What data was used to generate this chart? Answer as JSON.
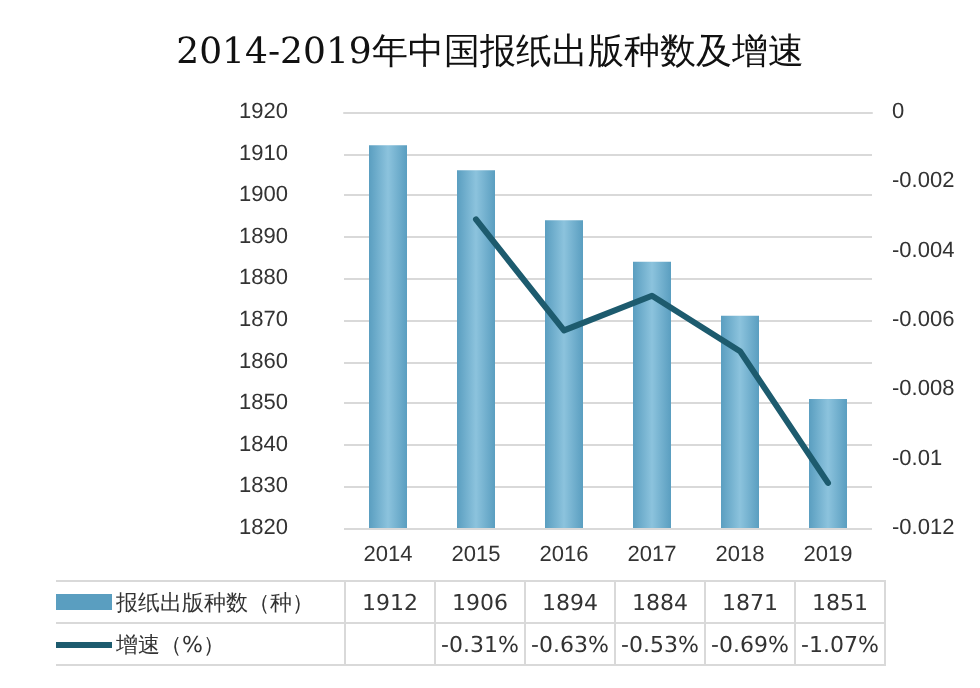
{
  "chart_data": {
    "type": "bar",
    "title": "2014-2019年中国报纸出版种数及增速",
    "categories": [
      "2014",
      "2015",
      "2016",
      "2017",
      "2018",
      "2019"
    ],
    "series": [
      {
        "name": "报纸出版种数（种）",
        "color": "#5a9ec0",
        "values": [
          1912,
          1906,
          1894,
          1884,
          1871,
          1851
        ]
      },
      {
        "name": "增速（%）",
        "type": "line",
        "axis": "y2",
        "color": "#1d5b6e",
        "values": [
          null,
          -0.0031,
          -0.0063,
          -0.0053,
          -0.0069,
          -0.0107
        ],
        "value_labels": [
          null,
          "-0.31%",
          "-0.63%",
          "-0.53%",
          "-0.69%",
          "-1.07%"
        ]
      }
    ],
    "ylim": [
      1820,
      1920
    ],
    "yticks": [
      1820,
      1830,
      1840,
      1850,
      1860,
      1870,
      1880,
      1890,
      1900,
      1910,
      1920
    ],
    "y2lim": [
      -0.012,
      0
    ],
    "y2ticks": [
      -0.012,
      -0.01,
      -0.008,
      -0.006,
      -0.004,
      -0.002,
      0
    ],
    "data_labels": true,
    "grid": "y",
    "legend": "bottom",
    "marker": "none",
    "line_style": "solid"
  }
}
